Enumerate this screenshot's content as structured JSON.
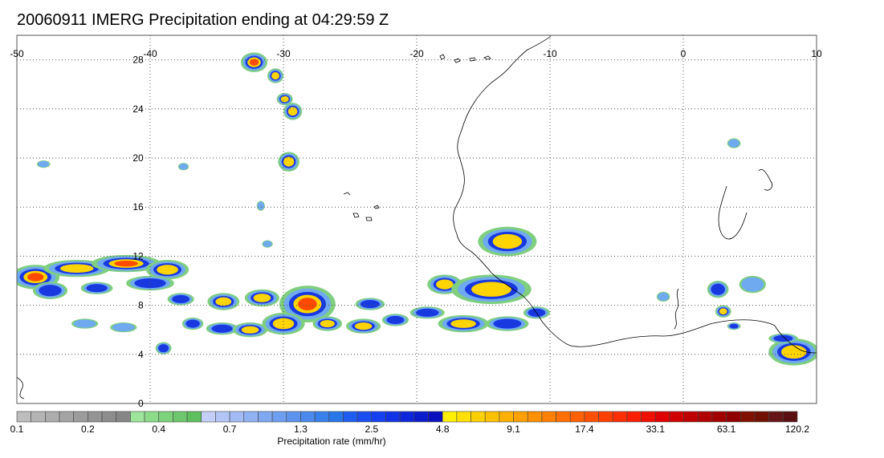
{
  "title": "20060911 IMERG Precipitation ending at 04:29:59 Z",
  "map": {
    "lon_range": [
      -50,
      10
    ],
    "lat_range": [
      0,
      30
    ],
    "lon_ticks": [
      {
        "value": -50,
        "label": "-50"
      },
      {
        "value": -40,
        "label": "-40"
      },
      {
        "value": -30,
        "label": "-30"
      },
      {
        "value": -20,
        "label": "-20"
      },
      {
        "value": -10,
        "label": "-10"
      },
      {
        "value": 0,
        "label": "0"
      },
      {
        "value": 10,
        "label": "10"
      }
    ],
    "lat_ticks": [
      {
        "value": 0,
        "label": "0"
      },
      {
        "value": 4,
        "label": "4"
      },
      {
        "value": 8,
        "label": "8"
      },
      {
        "value": 12,
        "label": "12"
      },
      {
        "value": 16,
        "label": "16"
      },
      {
        "value": 20,
        "label": "20"
      },
      {
        "value": 24,
        "label": "24"
      },
      {
        "value": 28,
        "label": "28"
      }
    ],
    "gridlines": "dotted",
    "precip_cells": [
      {
        "lon": -48.6,
        "lat": 10.3,
        "rl": 1.8,
        "rt": 1.0,
        "level": 4
      },
      {
        "lon": -45.5,
        "lat": 11.0,
        "rl": 2.5,
        "rt": 0.7,
        "level": 3
      },
      {
        "lon": -41.8,
        "lat": 11.4,
        "rl": 2.6,
        "rt": 0.7,
        "level": 4
      },
      {
        "lon": -38.7,
        "lat": 10.9,
        "rl": 1.6,
        "rt": 0.8,
        "level": 3
      },
      {
        "lon": -47.5,
        "lat": 9.2,
        "rl": 1.3,
        "rt": 0.7,
        "level": 2
      },
      {
        "lon": -44.0,
        "lat": 9.4,
        "rl": 1.2,
        "rt": 0.5,
        "level": 2
      },
      {
        "lon": -40.0,
        "lat": 9.8,
        "rl": 1.8,
        "rt": 0.6,
        "level": 2
      },
      {
        "lon": -37.7,
        "lat": 8.5,
        "rl": 1.0,
        "rt": 0.5,
        "level": 2
      },
      {
        "lon": -34.5,
        "lat": 8.3,
        "rl": 1.2,
        "rt": 0.7,
        "level": 3
      },
      {
        "lon": -31.6,
        "lat": 8.6,
        "rl": 1.3,
        "rt": 0.7,
        "level": 3
      },
      {
        "lon": -28.2,
        "lat": 8.1,
        "rl": 2.1,
        "rt": 1.5,
        "level": 4
      },
      {
        "lon": -23.5,
        "lat": 8.1,
        "rl": 1.1,
        "rt": 0.5,
        "level": 2
      },
      {
        "lon": -36.8,
        "lat": 6.5,
        "rl": 0.8,
        "rt": 0.5,
        "level": 2
      },
      {
        "lon": -34.6,
        "lat": 6.1,
        "rl": 1.2,
        "rt": 0.5,
        "level": 2
      },
      {
        "lon": -32.5,
        "lat": 6.0,
        "rl": 1.3,
        "rt": 0.6,
        "level": 3
      },
      {
        "lon": -30.0,
        "lat": 6.5,
        "rl": 1.6,
        "rt": 0.9,
        "level": 3
      },
      {
        "lon": -26.7,
        "lat": 6.5,
        "rl": 1.1,
        "rt": 0.6,
        "level": 3
      },
      {
        "lon": -24.0,
        "lat": 6.3,
        "rl": 1.3,
        "rt": 0.6,
        "level": 3
      },
      {
        "lon": -21.6,
        "lat": 6.8,
        "rl": 1.0,
        "rt": 0.5,
        "level": 2
      },
      {
        "lon": -44.9,
        "lat": 6.5,
        "rl": 1.0,
        "rt": 0.4,
        "level": 1
      },
      {
        "lon": -42.0,
        "lat": 6.2,
        "rl": 1.0,
        "rt": 0.4,
        "level": 1
      },
      {
        "lon": -39.0,
        "lat": 4.5,
        "rl": 0.6,
        "rt": 0.5,
        "level": 2
      },
      {
        "lon": -19.2,
        "lat": 7.4,
        "rl": 1.3,
        "rt": 0.5,
        "level": 2
      },
      {
        "lon": -17.9,
        "lat": 9.7,
        "rl": 1.3,
        "rt": 0.8,
        "level": 3
      },
      {
        "lon": -14.4,
        "lat": 9.3,
        "rl": 3.0,
        "rt": 1.2,
        "level": 3
      },
      {
        "lon": -16.5,
        "lat": 6.5,
        "rl": 1.9,
        "rt": 0.7,
        "level": 3
      },
      {
        "lon": -13.2,
        "lat": 6.5,
        "rl": 1.6,
        "rt": 0.6,
        "level": 2
      },
      {
        "lon": -11.0,
        "lat": 7.4,
        "rl": 1.0,
        "rt": 0.5,
        "level": 2
      },
      {
        "lon": -13.2,
        "lat": 13.2,
        "rl": 2.2,
        "rt": 1.2,
        "level": 3
      },
      {
        "lon": -32.2,
        "lat": 27.8,
        "rl": 1.0,
        "rt": 0.8,
        "level": 4
      },
      {
        "lon": -30.6,
        "lat": 26.7,
        "rl": 0.6,
        "rt": 0.6,
        "level": 3
      },
      {
        "lon": -29.9,
        "lat": 24.8,
        "rl": 0.6,
        "rt": 0.5,
        "level": 3
      },
      {
        "lon": -29.3,
        "lat": 23.8,
        "rl": 0.7,
        "rt": 0.7,
        "level": 3
      },
      {
        "lon": -29.6,
        "lat": 19.7,
        "rl": 0.8,
        "rt": 0.8,
        "level": 3
      },
      {
        "lon": 2.6,
        "lat": 9.3,
        "rl": 0.8,
        "rt": 0.7,
        "level": 2
      },
      {
        "lon": 3.0,
        "lat": 7.5,
        "rl": 0.6,
        "rt": 0.5,
        "level": 3
      },
      {
        "lon": 3.8,
        "lat": 6.3,
        "rl": 0.5,
        "rt": 0.3,
        "level": 2
      },
      {
        "lon": 8.3,
        "lat": 4.2,
        "rl": 1.9,
        "rt": 1.1,
        "level": 3
      },
      {
        "lon": 7.5,
        "lat": 5.3,
        "rl": 1.1,
        "rt": 0.4,
        "level": 2
      },
      {
        "lon": -1.5,
        "lat": 8.7,
        "rl": 0.5,
        "rt": 0.4,
        "level": 1
      },
      {
        "lon": 5.2,
        "lat": 9.7,
        "rl": 1.0,
        "rt": 0.7,
        "level": 1
      },
      {
        "lon": -48.0,
        "lat": 19.5,
        "rl": 0.5,
        "rt": 0.3,
        "level": 1
      },
      {
        "lon": -37.5,
        "lat": 19.3,
        "rl": 0.4,
        "rt": 0.3,
        "level": 1
      },
      {
        "lon": 3.8,
        "lat": 21.2,
        "rl": 0.5,
        "rt": 0.4,
        "level": 1
      },
      {
        "lon": -31.7,
        "lat": 16.1,
        "rl": 0.3,
        "rt": 0.4,
        "level": 1
      },
      {
        "lon": -31.2,
        "lat": 13.0,
        "rl": 0.4,
        "rt": 0.3,
        "level": 1
      }
    ]
  },
  "colorbar": {
    "colors": [
      "#bdbdbd",
      "#b4b4b4",
      "#acacac",
      "#a4a4a4",
      "#9c9c9c",
      "#949494",
      "#8d8d8d",
      "#868686",
      "#9ce59a",
      "#8cdc8b",
      "#7dd27c",
      "#6dc86d",
      "#5ebf5f",
      "#c4cff8",
      "#b2c5f6",
      "#a2bbf4",
      "#90b2f3",
      "#7fa8f1",
      "#6e9eef",
      "#5c94ed",
      "#4b8aeb",
      "#3a80ea",
      "#2876e8",
      "#1f5df1",
      "#1a4ef1",
      "#1540f0",
      "#1232e6",
      "#0e26d9",
      "#0b1ccb",
      "#0910be",
      "#fff000",
      "#ffe000",
      "#ffd000",
      "#ffc000",
      "#ffb000",
      "#ffa000",
      "#ff9000",
      "#ff8000",
      "#ff7000",
      "#ff6000",
      "#ff5000",
      "#ff4000",
      "#ff3000",
      "#fa2000",
      "#f01000",
      "#e00000",
      "#d00000",
      "#c00000",
      "#b00000",
      "#a00000",
      "#900000",
      "#801000",
      "#701000",
      "#651515",
      "#5a1010"
    ],
    "labels": [
      "0.1",
      "0.2",
      "0.4",
      "0.7",
      "1.3",
      "2.5",
      "4.8",
      "9.1",
      "17.4",
      "33.1",
      "63.1",
      "120.2"
    ],
    "title": "Precipitation rate (mm/hr)"
  }
}
